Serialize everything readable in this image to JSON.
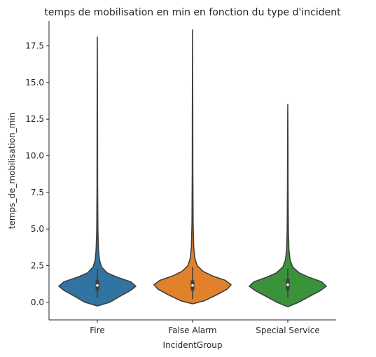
{
  "chart_data": {
    "type": "violin",
    "title": "temps de mobilisation en min en fonction du type d'incident",
    "xlabel": "IncidentGroup",
    "ylabel": "temps_de_mobilisation_min",
    "ylim": [
      -1.2,
      19.2
    ],
    "yticks": [
      0.0,
      2.5,
      5.0,
      7.5,
      10.0,
      12.5,
      15.0,
      17.5
    ],
    "ytick_labels": [
      "0.0",
      "2.5",
      "5.0",
      "7.5",
      "10.0",
      "12.5",
      "15.0",
      "17.5"
    ],
    "grid": false,
    "categories": [
      "Fire",
      "False Alarm",
      "Special Service"
    ],
    "series": [
      {
        "category": "Fire",
        "color": "#3274a1",
        "min": -0.25,
        "max": 18.1,
        "q1": 0.8,
        "median": 1.15,
        "q3": 1.55,
        "whisker_low": 0.3,
        "whisker_high": 2.3,
        "density": [
          [
            -0.25,
            0.0
          ],
          [
            0.0,
            0.32
          ],
          [
            0.4,
            0.58
          ],
          [
            0.8,
            0.86
          ],
          [
            1.1,
            1.0
          ],
          [
            1.4,
            0.87
          ],
          [
            1.7,
            0.53
          ],
          [
            2.0,
            0.26
          ],
          [
            2.4,
            0.11
          ],
          [
            2.9,
            0.055
          ],
          [
            3.6,
            0.03
          ],
          [
            5.0,
            0.015
          ],
          [
            8.0,
            0.008
          ],
          [
            12.0,
            0.005
          ],
          [
            18.1,
            0.0
          ]
        ]
      },
      {
        "category": "False Alarm",
        "color": "#e1812c",
        "min": -0.1,
        "max": 18.6,
        "q1": 0.8,
        "median": 1.15,
        "q3": 1.5,
        "whisker_low": 0.2,
        "whisker_high": 2.4,
        "density": [
          [
            -0.1,
            0.0
          ],
          [
            0.1,
            0.3
          ],
          [
            0.5,
            0.62
          ],
          [
            0.9,
            0.9
          ],
          [
            1.2,
            1.0
          ],
          [
            1.5,
            0.85
          ],
          [
            1.8,
            0.52
          ],
          [
            2.1,
            0.28
          ],
          [
            2.5,
            0.12
          ],
          [
            3.0,
            0.06
          ],
          [
            3.8,
            0.03
          ],
          [
            5.5,
            0.015
          ],
          [
            9.0,
            0.008
          ],
          [
            13.0,
            0.005
          ],
          [
            18.6,
            0.0
          ]
        ]
      },
      {
        "category": "Special Service",
        "color": "#3a923a",
        "min": -0.3,
        "max": 13.5,
        "q1": 0.85,
        "median": 1.2,
        "q3": 1.6,
        "whisker_low": 0.3,
        "whisker_high": 2.3,
        "density": [
          [
            -0.3,
            0.0
          ],
          [
            0.0,
            0.28
          ],
          [
            0.4,
            0.56
          ],
          [
            0.8,
            0.85
          ],
          [
            1.1,
            1.0
          ],
          [
            1.4,
            0.88
          ],
          [
            1.7,
            0.56
          ],
          [
            2.0,
            0.3
          ],
          [
            2.4,
            0.13
          ],
          [
            2.9,
            0.06
          ],
          [
            3.6,
            0.03
          ],
          [
            5.0,
            0.015
          ],
          [
            8.0,
            0.008
          ],
          [
            11.0,
            0.005
          ],
          [
            13.5,
            0.0
          ]
        ]
      }
    ]
  }
}
